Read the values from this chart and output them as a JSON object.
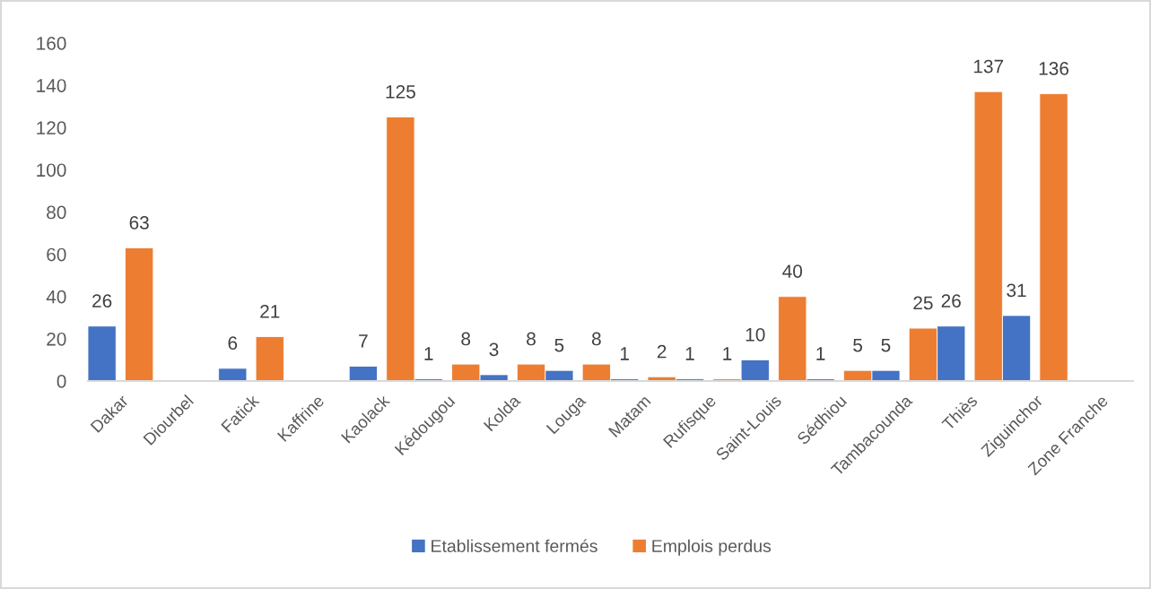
{
  "chart_data": {
    "type": "bar",
    "categories": [
      "Dakar",
      "Diourbel",
      "Fatick",
      "Kaffrine",
      "Kaolack",
      "Kédougou",
      "Kolda",
      "Louga",
      "Matam",
      "Rufisque",
      "Saint-Louis",
      "Sédhiou",
      "Tambacounda",
      "Thiès",
      "Ziguinchor",
      "Zone Franche"
    ],
    "series": [
      {
        "name": "Etablissement fermés",
        "color": "#4472c4",
        "values": [
          26,
          null,
          6,
          null,
          7,
          1,
          3,
          5,
          1,
          1,
          10,
          1,
          5,
          26,
          31,
          null
        ]
      },
      {
        "name": "Emplois perdus",
        "color": "#ed7d31",
        "values": [
          63,
          null,
          21,
          null,
          125,
          8,
          8,
          8,
          2,
          1,
          40,
          5,
          25,
          137,
          136,
          null
        ]
      }
    ],
    "ylim": [
      0,
      160
    ],
    "yticks": [
      0,
      20,
      40,
      60,
      80,
      100,
      120,
      140,
      160
    ],
    "grid": false,
    "legend": "bottom",
    "data_labels": true
  }
}
